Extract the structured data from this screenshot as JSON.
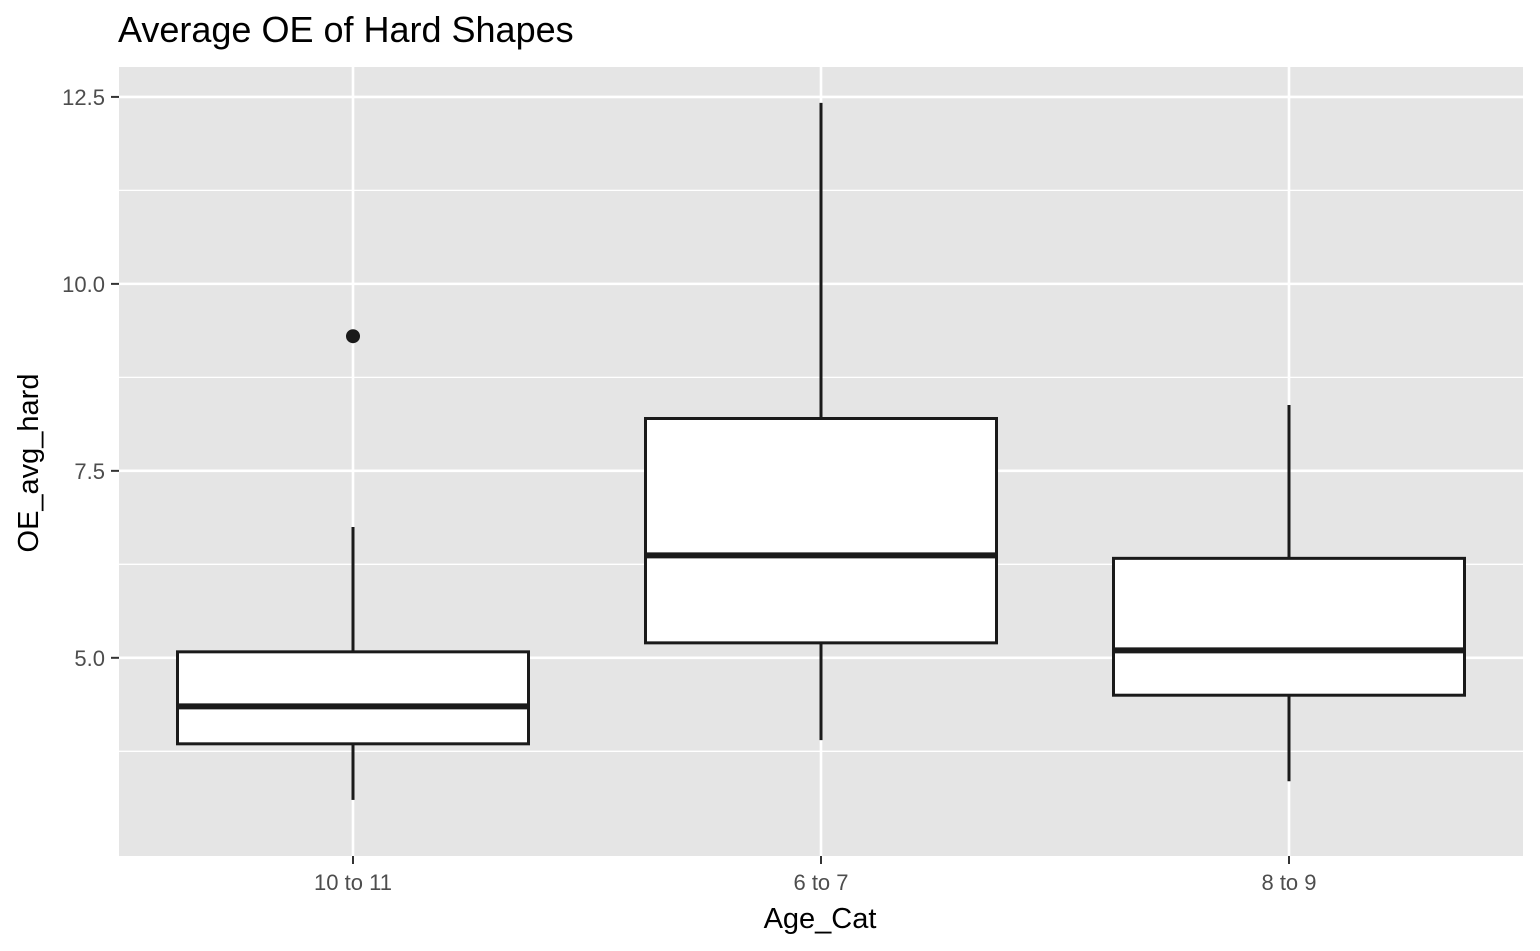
{
  "chart_data": {
    "type": "boxplot",
    "title": "Average OE of Hard Shapes",
    "xlabel": "Age_Cat",
    "ylabel": "OE_avg_hard",
    "categories": [
      "10 to 11",
      "6 to 7",
      "8 to 9"
    ],
    "ylim": [
      2.35,
      12.9
    ],
    "yticks": [
      5.0,
      7.5,
      10.0,
      12.5
    ],
    "ytick_labels": [
      "5.0",
      "7.5",
      "10.0",
      "12.5"
    ],
    "boxes": [
      {
        "category": "10 to 11",
        "whisker_low": 3.1,
        "q1": 3.85,
        "median": 4.35,
        "q3": 5.08,
        "whisker_high": 6.75,
        "outliers": [
          9.3
        ]
      },
      {
        "category": "6 to 7",
        "whisker_low": 3.9,
        "q1": 5.2,
        "median": 6.37,
        "q3": 8.2,
        "whisker_high": 12.42,
        "outliers": []
      },
      {
        "category": "8 to 9",
        "whisker_low": 3.35,
        "q1": 4.5,
        "median": 5.1,
        "q3": 6.33,
        "whisker_high": 8.38,
        "outliers": []
      }
    ],
    "grid": true,
    "legend": "none",
    "colors": {
      "panel_background": "#e5e5e5",
      "grid": "#ffffff",
      "box_fill": "#ffffff",
      "box_stroke": "#1a1a1a",
      "tick_text": "#4d4d4d",
      "tick_mark": "#333333"
    }
  }
}
